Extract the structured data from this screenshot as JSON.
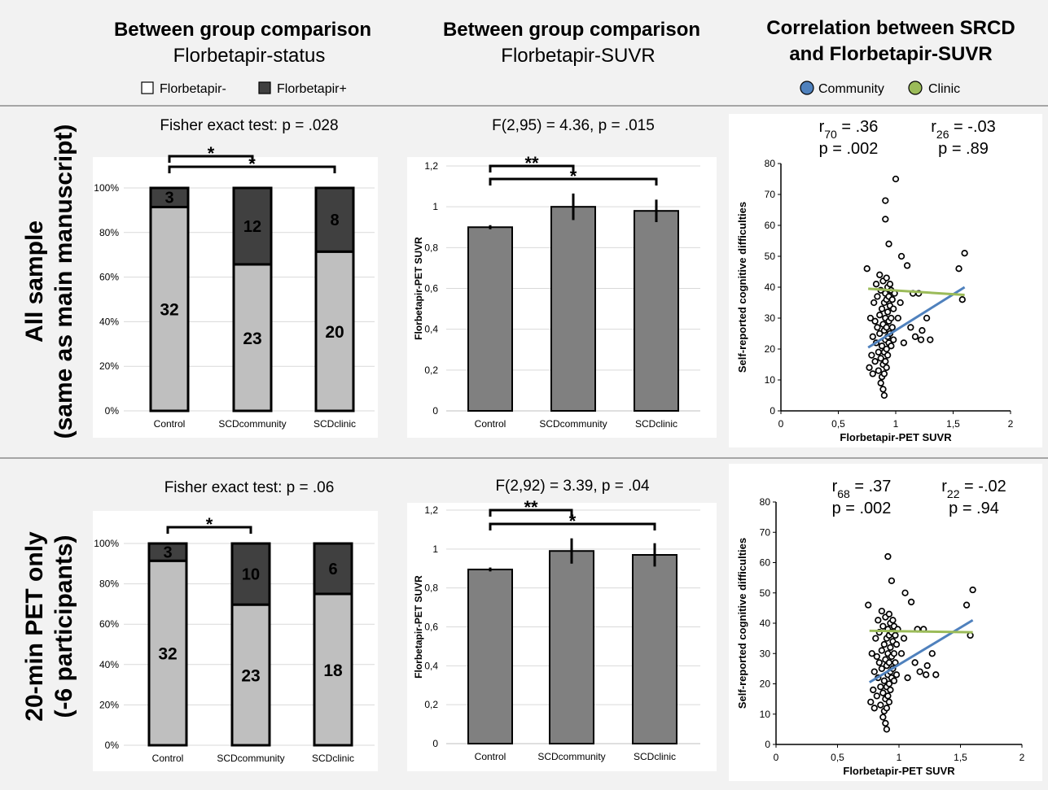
{
  "columns": [
    {
      "title": "Between group comparison",
      "subtitle": "Florbetapir-status"
    },
    {
      "title": "Between group comparison",
      "subtitle": "Florbetapir-SUVR"
    },
    {
      "title_line1": "Correlation between SRCD",
      "title_line2": "and Florbetapir-SUVR"
    }
  ],
  "legends": {
    "status": [
      "Florbetapir-",
      "Florbetapir+"
    ],
    "groups": [
      "Community",
      "Clinic"
    ]
  },
  "rows": [
    {
      "label_line1": "All sample",
      "label_line2": "(same as main manuscript)"
    },
    {
      "label_line1": "20-min PET only",
      "label_line2": "(-6 participants)"
    }
  ],
  "colors": {
    "negative": "#bfbfbf",
    "positive": "#404040",
    "suvr_bar": "#808080",
    "community": "#4f81bd",
    "clinic": "#9bbb59",
    "background": "#f2f2f2",
    "plot_background": "#ffffff"
  },
  "chart_data": [
    {
      "type": "bar",
      "stacked": true,
      "title": "Fisher exact test: p = .028",
      "categories": [
        "Control",
        "SCDcommunity",
        "SCDclinic"
      ],
      "series": [
        {
          "name": "Florbetapir-",
          "values": [
            32,
            23,
            20
          ]
        },
        {
          "name": "Florbetapir+",
          "values": [
            3,
            12,
            8
          ]
        }
      ],
      "yticks": [
        "0%",
        "20%",
        "40%",
        "60%",
        "80%",
        "100%"
      ],
      "ylim": [
        0,
        100
      ],
      "significance": [
        {
          "from": "Control",
          "to": "SCDcommunity",
          "label": "*"
        },
        {
          "from": "Control",
          "to": "SCDclinic",
          "label": "*"
        }
      ]
    },
    {
      "type": "bar",
      "title": "F(2,95) = 4.36, p = .015",
      "ylabel": "Florbetapir-PET SUVR",
      "categories": [
        "Control",
        "SCDcommunity",
        "SCDclinic"
      ],
      "values": [
        0.9,
        1.0,
        0.98
      ],
      "errors": [
        0.01,
        0.065,
        0.055
      ],
      "ylim": [
        0,
        1.2
      ],
      "yticks": [
        "0",
        "0,2",
        "0,4",
        "0,6",
        "0,8",
        "1",
        "1,2"
      ],
      "significance": [
        {
          "from": "Control",
          "to": "SCDcommunity",
          "label": "**"
        },
        {
          "from": "Control",
          "to": "SCDclinic",
          "label": "*"
        }
      ]
    },
    {
      "type": "scatter",
      "xlabel": "Florbetapir-PET SUVR",
      "ylabel": "Self-reported cognitive difficulties",
      "xlim": [
        0,
        2
      ],
      "ylim": [
        0,
        80
      ],
      "xticks": [
        "0",
        "0,5",
        "1",
        "1,5",
        "2"
      ],
      "yticks": [
        "0",
        "10",
        "20",
        "30",
        "40",
        "50",
        "60",
        "70",
        "80"
      ],
      "annotations": [
        {
          "r": "r",
          "sub": "70",
          "rval": " = .36",
          "p": "p = .002"
        },
        {
          "r": "r",
          "sub": "26",
          "rval": " = -.03",
          "p": "p = .89"
        }
      ],
      "trend_lines": [
        {
          "name": "Community",
          "x": [
            0.76,
            1.6
          ],
          "y": [
            20.5,
            40
          ]
        },
        {
          "name": "Clinic",
          "x": [
            0.76,
            1.6
          ],
          "y": [
            39.5,
            37.5
          ]
        }
      ],
      "points": [
        [
          0.75,
          46
        ],
        [
          0.77,
          14
        ],
        [
          0.78,
          30
        ],
        [
          0.79,
          18
        ],
        [
          0.8,
          12
        ],
        [
          0.8,
          24
        ],
        [
          0.81,
          35
        ],
        [
          0.82,
          29
        ],
        [
          0.82,
          16
        ],
        [
          0.83,
          41
        ],
        [
          0.83,
          22
        ],
        [
          0.84,
          37
        ],
        [
          0.84,
          27
        ],
        [
          0.85,
          19
        ],
        [
          0.85,
          13
        ],
        [
          0.86,
          44
        ],
        [
          0.86,
          31
        ],
        [
          0.86,
          25
        ],
        [
          0.87,
          17
        ],
        [
          0.87,
          9
        ],
        [
          0.87,
          39
        ],
        [
          0.88,
          33
        ],
        [
          0.88,
          21
        ],
        [
          0.88,
          11
        ],
        [
          0.89,
          42
        ],
        [
          0.89,
          28
        ],
        [
          0.89,
          15
        ],
        [
          0.89,
          7
        ],
        [
          0.9,
          35
        ],
        [
          0.9,
          26
        ],
        [
          0.9,
          19
        ],
        [
          0.9,
          12
        ],
        [
          0.9,
          5
        ],
        [
          0.91,
          68
        ],
        [
          0.91,
          62
        ],
        [
          0.91,
          38
        ],
        [
          0.91,
          30
        ],
        [
          0.91,
          23
        ],
        [
          0.91,
          16
        ],
        [
          0.92,
          43
        ],
        [
          0.92,
          36
        ],
        [
          0.92,
          27
        ],
        [
          0.92,
          20
        ],
        [
          0.92,
          14
        ],
        [
          0.93,
          40
        ],
        [
          0.93,
          32
        ],
        [
          0.93,
          24
        ],
        [
          0.93,
          18
        ],
        [
          0.94,
          54
        ],
        [
          0.94,
          37
        ],
        [
          0.94,
          29
        ],
        [
          0.94,
          22
        ],
        [
          0.95,
          41
        ],
        [
          0.95,
          34
        ],
        [
          0.95,
          25
        ],
        [
          0.96,
          39
        ],
        [
          0.96,
          30
        ],
        [
          0.96,
          21
        ],
        [
          0.97,
          36
        ],
        [
          0.97,
          27
        ],
        [
          0.98,
          33
        ],
        [
          0.98,
          23
        ],
        [
          0.99,
          38
        ],
        [
          1,
          75
        ],
        [
          1.02,
          30
        ],
        [
          1.04,
          35
        ],
        [
          1.05,
          50
        ],
        [
          1.07,
          22
        ],
        [
          1.1,
          47
        ],
        [
          1.13,
          27
        ],
        [
          1.15,
          38
        ],
        [
          1.17,
          24
        ],
        [
          1.2,
          38
        ],
        [
          1.22,
          23
        ],
        [
          1.23,
          26
        ],
        [
          1.27,
          30
        ],
        [
          1.3,
          23
        ],
        [
          1.55,
          46
        ],
        [
          1.58,
          36
        ],
        [
          1.6,
          51
        ]
      ]
    },
    {
      "type": "bar",
      "stacked": true,
      "title": "Fisher exact test: p = .06",
      "categories": [
        "Control",
        "SCDcommunity",
        "SCDclinic"
      ],
      "series": [
        {
          "name": "Florbetapir-",
          "values": [
            32,
            23,
            18
          ]
        },
        {
          "name": "Florbetapir+",
          "values": [
            3,
            10,
            6
          ]
        }
      ],
      "yticks": [
        "0%",
        "20%",
        "40%",
        "60%",
        "80%",
        "100%"
      ],
      "ylim": [
        0,
        100
      ],
      "significance": [
        {
          "from": "Control",
          "to": "SCDcommunity",
          "label": "*"
        }
      ]
    },
    {
      "type": "bar",
      "title": "F(2,92) = 3.39, p = .04",
      "ylabel": "Florbetapir-PET SUVR",
      "categories": [
        "Control",
        "SCDcommunity",
        "SCDclinic"
      ],
      "values": [
        0.895,
        0.99,
        0.97
      ],
      "errors": [
        0.01,
        0.065,
        0.06
      ],
      "ylim": [
        0,
        1.2
      ],
      "yticks": [
        "0",
        "0,2",
        "0,4",
        "0,6",
        "0,8",
        "1",
        "1,2"
      ],
      "significance": [
        {
          "from": "Control",
          "to": "SCDcommunity",
          "label": "**"
        },
        {
          "from": "Control",
          "to": "SCDclinic",
          "label": "*"
        }
      ]
    },
    {
      "type": "scatter",
      "xlabel": "Florbetapir-PET SUVR",
      "ylabel": "Self-reported cognitive difficulties",
      "xlim": [
        0,
        2
      ],
      "ylim": [
        0,
        80
      ],
      "xticks": [
        "0",
        "0,5",
        "1",
        "1,5",
        "2"
      ],
      "yticks": [
        "0",
        "10",
        "20",
        "30",
        "40",
        "50",
        "60",
        "70",
        "80"
      ],
      "annotations": [
        {
          "r": "r",
          "sub": "68",
          "rval": " = .37",
          "p": "p = .002"
        },
        {
          "r": "r",
          "sub": "22",
          "rval": " = -.02",
          "p": "p = .94"
        }
      ],
      "trend_lines": [
        {
          "name": "Community",
          "x": [
            0.76,
            1.6
          ],
          "y": [
            20.5,
            41
          ]
        },
        {
          "name": "Clinic",
          "x": [
            0.76,
            1.6
          ],
          "y": [
            37.5,
            37
          ]
        }
      ],
      "points": [
        [
          0.75,
          46
        ],
        [
          0.77,
          14
        ],
        [
          0.78,
          30
        ],
        [
          0.79,
          18
        ],
        [
          0.8,
          12
        ],
        [
          0.8,
          24
        ],
        [
          0.81,
          35
        ],
        [
          0.82,
          29
        ],
        [
          0.82,
          16
        ],
        [
          0.83,
          41
        ],
        [
          0.83,
          22
        ],
        [
          0.84,
          37
        ],
        [
          0.84,
          27
        ],
        [
          0.85,
          19
        ],
        [
          0.85,
          13
        ],
        [
          0.86,
          44
        ],
        [
          0.86,
          31
        ],
        [
          0.86,
          25
        ],
        [
          0.87,
          17
        ],
        [
          0.87,
          9
        ],
        [
          0.87,
          39
        ],
        [
          0.88,
          33
        ],
        [
          0.88,
          21
        ],
        [
          0.88,
          11
        ],
        [
          0.89,
          42
        ],
        [
          0.89,
          28
        ],
        [
          0.89,
          15
        ],
        [
          0.89,
          7
        ],
        [
          0.9,
          35
        ],
        [
          0.9,
          26
        ],
        [
          0.9,
          19
        ],
        [
          0.9,
          12
        ],
        [
          0.9,
          5
        ],
        [
          0.91,
          62
        ],
        [
          0.91,
          38
        ],
        [
          0.91,
          30
        ],
        [
          0.91,
          23
        ],
        [
          0.91,
          16
        ],
        [
          0.92,
          43
        ],
        [
          0.92,
          36
        ],
        [
          0.92,
          27
        ],
        [
          0.92,
          20
        ],
        [
          0.92,
          14
        ],
        [
          0.93,
          40
        ],
        [
          0.93,
          32
        ],
        [
          0.93,
          24
        ],
        [
          0.93,
          18
        ],
        [
          0.94,
          54
        ],
        [
          0.94,
          37
        ],
        [
          0.94,
          29
        ],
        [
          0.94,
          22
        ],
        [
          0.95,
          41
        ],
        [
          0.95,
          34
        ],
        [
          0.95,
          25
        ],
        [
          0.96,
          39
        ],
        [
          0.96,
          30
        ],
        [
          0.96,
          21
        ],
        [
          0.97,
          36
        ],
        [
          0.97,
          27
        ],
        [
          0.98,
          33
        ],
        [
          0.98,
          23
        ],
        [
          0.99,
          38
        ],
        [
          1.02,
          30
        ],
        [
          1.04,
          35
        ],
        [
          1.05,
          50
        ],
        [
          1.07,
          22
        ],
        [
          1.1,
          47
        ],
        [
          1.13,
          27
        ],
        [
          1.15,
          38
        ],
        [
          1.17,
          24
        ],
        [
          1.2,
          38
        ],
        [
          1.22,
          23
        ],
        [
          1.23,
          26
        ],
        [
          1.27,
          30
        ],
        [
          1.3,
          23
        ],
        [
          1.55,
          46
        ],
        [
          1.58,
          36
        ],
        [
          1.6,
          51
        ]
      ]
    }
  ]
}
